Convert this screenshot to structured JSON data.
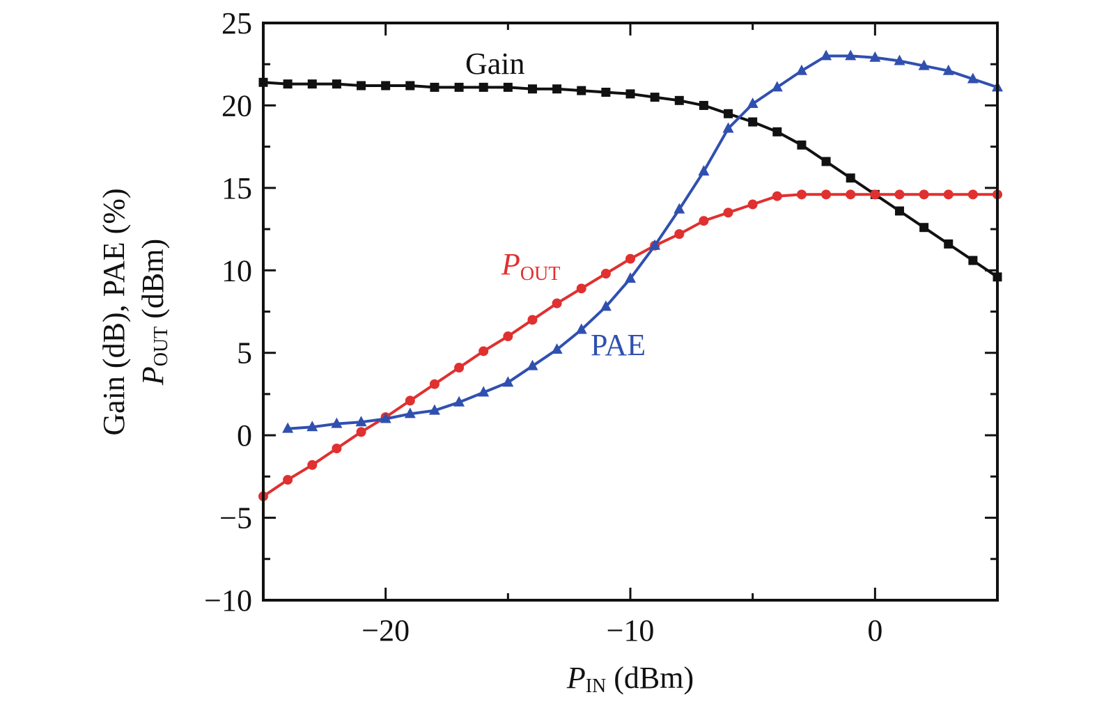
{
  "chart_data": {
    "type": "line",
    "xlabel": {
      "main": "P",
      "sub": "IN",
      "unit": " (dBm)"
    },
    "ylabel": {
      "line1": "Gain (dB), PAE (%)",
      "line2_main": "P",
      "line2_sub": "OUT",
      "line2_unit": " (dBm)"
    },
    "xlim": [
      -25,
      5
    ],
    "ylim": [
      -10,
      25
    ],
    "xticks": [
      -20,
      -10,
      0
    ],
    "xtick_labels": [
      "−20",
      "−10",
      "0"
    ],
    "yticks": [
      -10,
      -5,
      0,
      5,
      10,
      15,
      20,
      25
    ],
    "ytick_labels": [
      "−10",
      "−5",
      "0",
      "5",
      "10",
      "15",
      "20",
      "25"
    ],
    "grid": false,
    "series": [
      {
        "key": "gain",
        "name": "Gain",
        "color": "#111111",
        "marker": "square",
        "x": [
          -25,
          -24,
          -23,
          -22,
          -21,
          -20,
          -19,
          -18,
          -17,
          -16,
          -15,
          -14,
          -13,
          -12,
          -11,
          -10,
          -9,
          -8,
          -7,
          -6,
          -5,
          -4,
          -3,
          -2,
          -1,
          0,
          1,
          2,
          3,
          4,
          5
        ],
        "y": [
          21.4,
          21.3,
          21.3,
          21.3,
          21.2,
          21.2,
          21.2,
          21.1,
          21.1,
          21.1,
          21.1,
          21.0,
          21.0,
          20.9,
          20.8,
          20.7,
          20.5,
          20.3,
          20.0,
          19.5,
          19.0,
          18.4,
          17.6,
          16.6,
          15.6,
          14.6,
          13.6,
          12.6,
          11.6,
          10.6,
          9.6
        ]
      },
      {
        "key": "pout",
        "name_main": "P",
        "name_sub": "OUT",
        "color": "#e03030",
        "marker": "circle",
        "x": [
          -25,
          -24,
          -23,
          -22,
          -21,
          -20,
          -19,
          -18,
          -17,
          -16,
          -15,
          -14,
          -13,
          -12,
          -11,
          -10,
          -9,
          -8,
          -7,
          -6,
          -5,
          -4,
          -3,
          -2,
          -1,
          0,
          1,
          2,
          3,
          4,
          5
        ],
        "y": [
          -3.7,
          -2.7,
          -1.8,
          -0.8,
          0.2,
          1.1,
          2.1,
          3.1,
          4.1,
          5.1,
          6.0,
          7.0,
          8.0,
          8.9,
          9.8,
          10.7,
          11.5,
          12.2,
          13.0,
          13.5,
          14.0,
          14.5,
          14.6,
          14.6,
          14.6,
          14.6,
          14.6,
          14.6,
          14.6,
          14.6,
          14.6
        ]
      },
      {
        "key": "pae",
        "name": "PAE",
        "color": "#3050b0",
        "marker": "triangle",
        "x": [
          -24,
          -23,
          -22,
          -21,
          -20,
          -19,
          -18,
          -17,
          -16,
          -15,
          -14,
          -13,
          -12,
          -11,
          -10,
          -9,
          -8,
          -7,
          -6,
          -5,
          -4,
          -3,
          -2,
          -1,
          0,
          1,
          2,
          3,
          4,
          5
        ],
        "y": [
          0.4,
          0.5,
          0.7,
          0.8,
          1.0,
          1.3,
          1.5,
          2.0,
          2.6,
          3.2,
          4.2,
          5.2,
          6.4,
          7.8,
          9.5,
          11.5,
          13.7,
          16.0,
          18.6,
          20.1,
          21.1,
          22.1,
          23.0,
          23.0,
          22.9,
          22.7,
          22.4,
          22.1,
          21.6,
          21.1
        ]
      }
    ]
  }
}
